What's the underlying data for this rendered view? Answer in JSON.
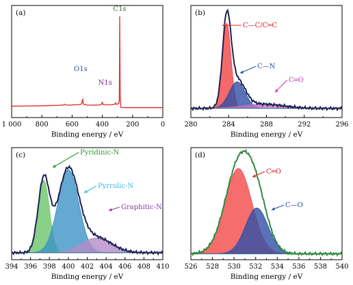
{
  "chart_data": [
    {
      "panel_label": "(a)",
      "type": "line",
      "xlabel": "Binding energy / eV",
      "xlim": [
        1000,
        0
      ],
      "x_ticks": [
        "1 000",
        "800",
        "600",
        "400",
        "200",
        "0"
      ],
      "x_tick_values": [
        1000,
        800,
        600,
        400,
        200,
        0
      ],
      "colors": {
        "spectrum": "#e03030",
        "o1s": "#2a4fa8",
        "n1s": "#7a2a86",
        "c1s": "#2c7a2c"
      },
      "annotations": [
        {
          "text": "O1s",
          "x": 530
        },
        {
          "text": "N1s",
          "x": 400
        },
        {
          "text": "C1s",
          "x": 285
        }
      ],
      "series": [
        {
          "x": [
            1000,
            900,
            800,
            760,
            700,
            660,
            650,
            640,
            600,
            560,
            540,
            535,
            532,
            530,
            528,
            524,
            500,
            460,
            420,
            405,
            402,
            400,
            398,
            395,
            380,
            340,
            320,
            312,
            308,
            300,
            292,
            288,
            286,
            285,
            284,
            282,
            278,
            270,
            250,
            200,
            150,
            100,
            50,
            0
          ],
          "y": [
            20,
            22,
            24,
            26,
            28,
            32,
            42,
            31,
            33,
            36,
            42,
            60,
            90,
            95,
            60,
            40,
            32,
            31,
            33,
            40,
            58,
            62,
            50,
            38,
            34,
            35,
            40,
            55,
            38,
            45,
            48,
            80,
            600,
            1000,
            700,
            120,
            10,
            5,
            4,
            4,
            4,
            4,
            4,
            4
          ]
        }
      ]
    },
    {
      "panel_label": "(b)",
      "type": "area",
      "xlabel": "Binding energy / eV",
      "xlim": [
        280,
        296
      ],
      "x_ticks": [
        "280",
        "284",
        "288",
        "292",
        "296"
      ],
      "x_tick_values": [
        280,
        284,
        288,
        292,
        296
      ],
      "ylim": [
        0,
        100
      ],
      "baseline": 6,
      "envelope_color": "#1c2150",
      "components": [
        {
          "label": "C—C/C═C",
          "center": 283.8,
          "sigma": 0.45,
          "amplitude": 80,
          "fill": "#f24444",
          "label_color": "#e02020"
        },
        {
          "label": "C—N",
          "center": 284.9,
          "sigma": 0.85,
          "amplitude": 25,
          "fill": "#2f4fa6",
          "label_color": "#2a4fa8"
        },
        {
          "label": "C═O",
          "center": 287.6,
          "sigma": 2.2,
          "amplitude": 4,
          "fill": "#c070c8",
          "label_color": "#c040c0"
        }
      ]
    },
    {
      "panel_label": "(c)",
      "type": "area",
      "xlabel": "Binding energy / eV",
      "xlim": [
        394,
        410
      ],
      "x_ticks": [
        "394",
        "396",
        "398",
        "400",
        "402",
        "404",
        "406",
        "408",
        "410"
      ],
      "x_tick_values": [
        394,
        396,
        398,
        400,
        402,
        404,
        406,
        408,
        410
      ],
      "ylim": [
        0,
        100
      ],
      "baseline": 4,
      "envelope_color": "#1c2150",
      "components": [
        {
          "label": "Pyridinic-N",
          "center": 397.4,
          "sigma": 0.6,
          "amplitude": 68,
          "fill": "#6cc46c",
          "label_color": "#2a9a2a"
        },
        {
          "label": "Pyrrolic-N",
          "center": 400.0,
          "sigma": 1.1,
          "amplitude": 78,
          "fill": "#3c93c6",
          "label_color": "#3ab8e8"
        },
        {
          "label": "Graphitic-N",
          "center": 403.0,
          "sigma": 1.6,
          "amplitude": 14,
          "fill": "#b48cc8",
          "label_color": "#8a3aa0"
        }
      ]
    },
    {
      "panel_label": "(d)",
      "type": "area",
      "xlabel": "Binding energy / eV",
      "xlim": [
        526,
        540
      ],
      "x_ticks": [
        "526",
        "528",
        "530",
        "532",
        "534",
        "536",
        "538",
        "540"
      ],
      "x_tick_values": [
        526,
        528,
        530,
        532,
        534,
        536,
        538,
        540
      ],
      "ylim": [
        0,
        100
      ],
      "baseline": 3,
      "envelope_color": "#2e8a3e",
      "components": [
        {
          "label": "C═O",
          "center": 530.4,
          "sigma": 1.25,
          "amplitude": 80,
          "fill": "#f24848",
          "label_color": "#e02020"
        },
        {
          "label": "C—O",
          "center": 532.1,
          "sigma": 1.05,
          "amplitude": 43,
          "fill": "#2f4fa6",
          "label_color": "#2a4fa8"
        }
      ]
    }
  ]
}
